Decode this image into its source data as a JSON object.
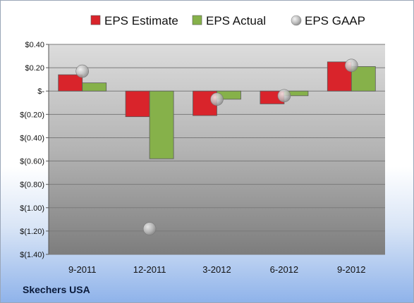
{
  "company": "Skechers USA",
  "chart_data": {
    "type": "bar",
    "categories": [
      "9-2011",
      "12-2011",
      "3-2012",
      "6-2012",
      "9-2012"
    ],
    "series": [
      {
        "name": "EPS Estimate",
        "kind": "bar",
        "color": "#d9242b",
        "values": [
          0.14,
          -0.22,
          -0.21,
          -0.11,
          0.25
        ]
      },
      {
        "name": "EPS Actual",
        "kind": "bar",
        "color": "#86b14a",
        "values": [
          0.07,
          -0.58,
          -0.07,
          -0.04,
          0.21
        ]
      },
      {
        "name": "EPS GAAP",
        "kind": "point",
        "color": "#c7c7c7",
        "values": [
          0.17,
          -1.18,
          -0.07,
          -0.04,
          0.22
        ]
      }
    ],
    "ylim": [
      -1.4,
      0.4
    ],
    "yticks": [
      0.4,
      0.2,
      0,
      -0.2,
      -0.4,
      -0.6,
      -0.8,
      -1.0,
      -1.2,
      -1.4
    ],
    "ytick_labels": [
      "$0.40",
      "$0.20",
      "$-",
      "$(0.20)",
      "$(0.40)",
      "$(0.60)",
      "$(0.80)",
      "$(1.00)",
      "$(1.20)",
      "$(1.40)"
    ],
    "legend_position": "top",
    "grid": true
  }
}
